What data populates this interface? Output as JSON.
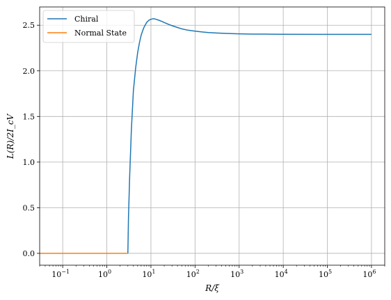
{
  "chart_data": {
    "type": "line",
    "title": "",
    "xlabel": "R/ξ",
    "ylabel": "L(R)/2I_cV",
    "xscale": "log",
    "xlim": [
      0.03,
      2000000
    ],
    "ylim": [
      -0.13,
      2.7
    ],
    "grid": true,
    "legend_position": "top-left",
    "x_tick_labels": [
      {
        "value": 0.1,
        "base": "10",
        "exp": "−1"
      },
      {
        "value": 1,
        "base": "10",
        "exp": "0"
      },
      {
        "value": 10,
        "base": "10",
        "exp": "1"
      },
      {
        "value": 100,
        "base": "10",
        "exp": "2"
      },
      {
        "value": 1000,
        "base": "10",
        "exp": "3"
      },
      {
        "value": 10000,
        "base": "10",
        "exp": "4"
      },
      {
        "value": 100000,
        "base": "10",
        "exp": "5"
      },
      {
        "value": 1000000,
        "base": "10",
        "exp": "6"
      }
    ],
    "y_ticks": [
      {
        "value": 0.0,
        "label": "0.0"
      },
      {
        "value": 0.5,
        "label": "0.5"
      },
      {
        "value": 1.0,
        "label": "1.0"
      },
      {
        "value": 1.5,
        "label": "1.5"
      },
      {
        "value": 2.0,
        "label": "2.0"
      },
      {
        "value": 2.5,
        "label": "2.5"
      }
    ],
    "series": [
      {
        "name": "Chiral",
        "color": "#1f77b4",
        "x": [
          3.0,
          3.1,
          3.3,
          3.6,
          4.0,
          4.5,
          5.0,
          5.5,
          6.0,
          6.5,
          7.0,
          8.0,
          9.0,
          10,
          11,
          12,
          13,
          15,
          18,
          20,
          25,
          30,
          40,
          50,
          70,
          100,
          150,
          200,
          300,
          500,
          1000,
          2000,
          5000,
          10000,
          100000,
          1000000
        ],
        "y": [
          0.0,
          0.4,
          0.85,
          1.35,
          1.78,
          2.03,
          2.2,
          2.31,
          2.39,
          2.44,
          2.48,
          2.53,
          2.555,
          2.565,
          2.57,
          2.57,
          2.565,
          2.555,
          2.54,
          2.53,
          2.51,
          2.495,
          2.475,
          2.46,
          2.445,
          2.435,
          2.425,
          2.42,
          2.415,
          2.41,
          2.405,
          2.403,
          2.402,
          2.401,
          2.4,
          2.4
        ]
      },
      {
        "name": "Normal State",
        "color": "#ff7f0e",
        "x": [
          0.03,
          3.0
        ],
        "y": [
          0.0,
          0.0
        ]
      }
    ]
  }
}
